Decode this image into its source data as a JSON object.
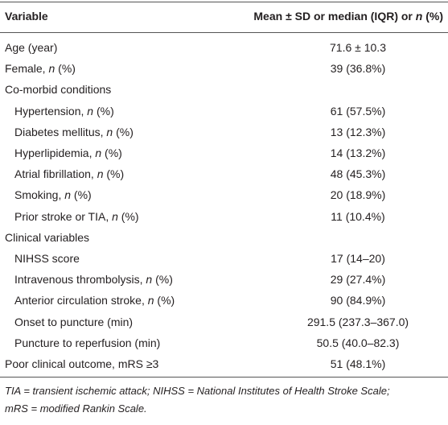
{
  "table": {
    "header": {
      "variable": "Variable",
      "value": [
        "Mean ± SD or median (IQR) or ",
        "n",
        " (%)"
      ]
    },
    "rows": [
      {
        "label": "Age (year)",
        "value": "71.6 ± 10.3"
      },
      {
        "label": [
          "Female, ",
          "n",
          " (%)"
        ],
        "value": "39 (36.8%)"
      },
      {
        "label": "Co-morbid conditions",
        "children": [
          {
            "label": [
              "Hypertension, ",
              "n",
              " (%)"
            ],
            "value": "61 (57.5%)"
          },
          {
            "label": [
              "Diabetes mellitus, ",
              "n",
              " (%)"
            ],
            "value": "13 (12.3%)"
          },
          {
            "label": [
              "Hyperlipidemia, ",
              "n",
              " (%)"
            ],
            "value": "14 (13.2%)"
          },
          {
            "label": [
              "Atrial fibrillation, ",
              "n",
              " (%)"
            ],
            "value": "48 (45.3%)"
          },
          {
            "label": [
              "Smoking, ",
              "n",
              " (%)"
            ],
            "value": "20 (18.9%)"
          },
          {
            "label": [
              "Prior stroke or TIA, ",
              "n",
              " (%)"
            ],
            "value": "11 (10.4%)"
          }
        ]
      },
      {
        "label": "Clinical variables",
        "children": [
          {
            "label": "NIHSS score",
            "value": "17 (14–20)"
          },
          {
            "label": [
              "Intravenous thrombolysis, ",
              "n",
              " (%)"
            ],
            "value": "29 (27.4%)"
          },
          {
            "label": [
              "Anterior circulation stroke, ",
              "n",
              " (%)"
            ],
            "value": "90 (84.9%)"
          },
          {
            "label": "Onset to puncture (min)",
            "value": "291.5 (237.3–367.0)"
          },
          {
            "label": "Puncture to reperfusion (min)",
            "value": "50.5 (40.0–82.3)"
          }
        ]
      },
      {
        "label": "Poor clinical outcome, mRS ≥3",
        "value": "51 (48.1%)"
      }
    ]
  },
  "footnote": [
    "TIA = transient ischemic attack; NIHSS = National Institutes of Health Stroke Scale;",
    "mRS = modified Rankin Scale."
  ]
}
